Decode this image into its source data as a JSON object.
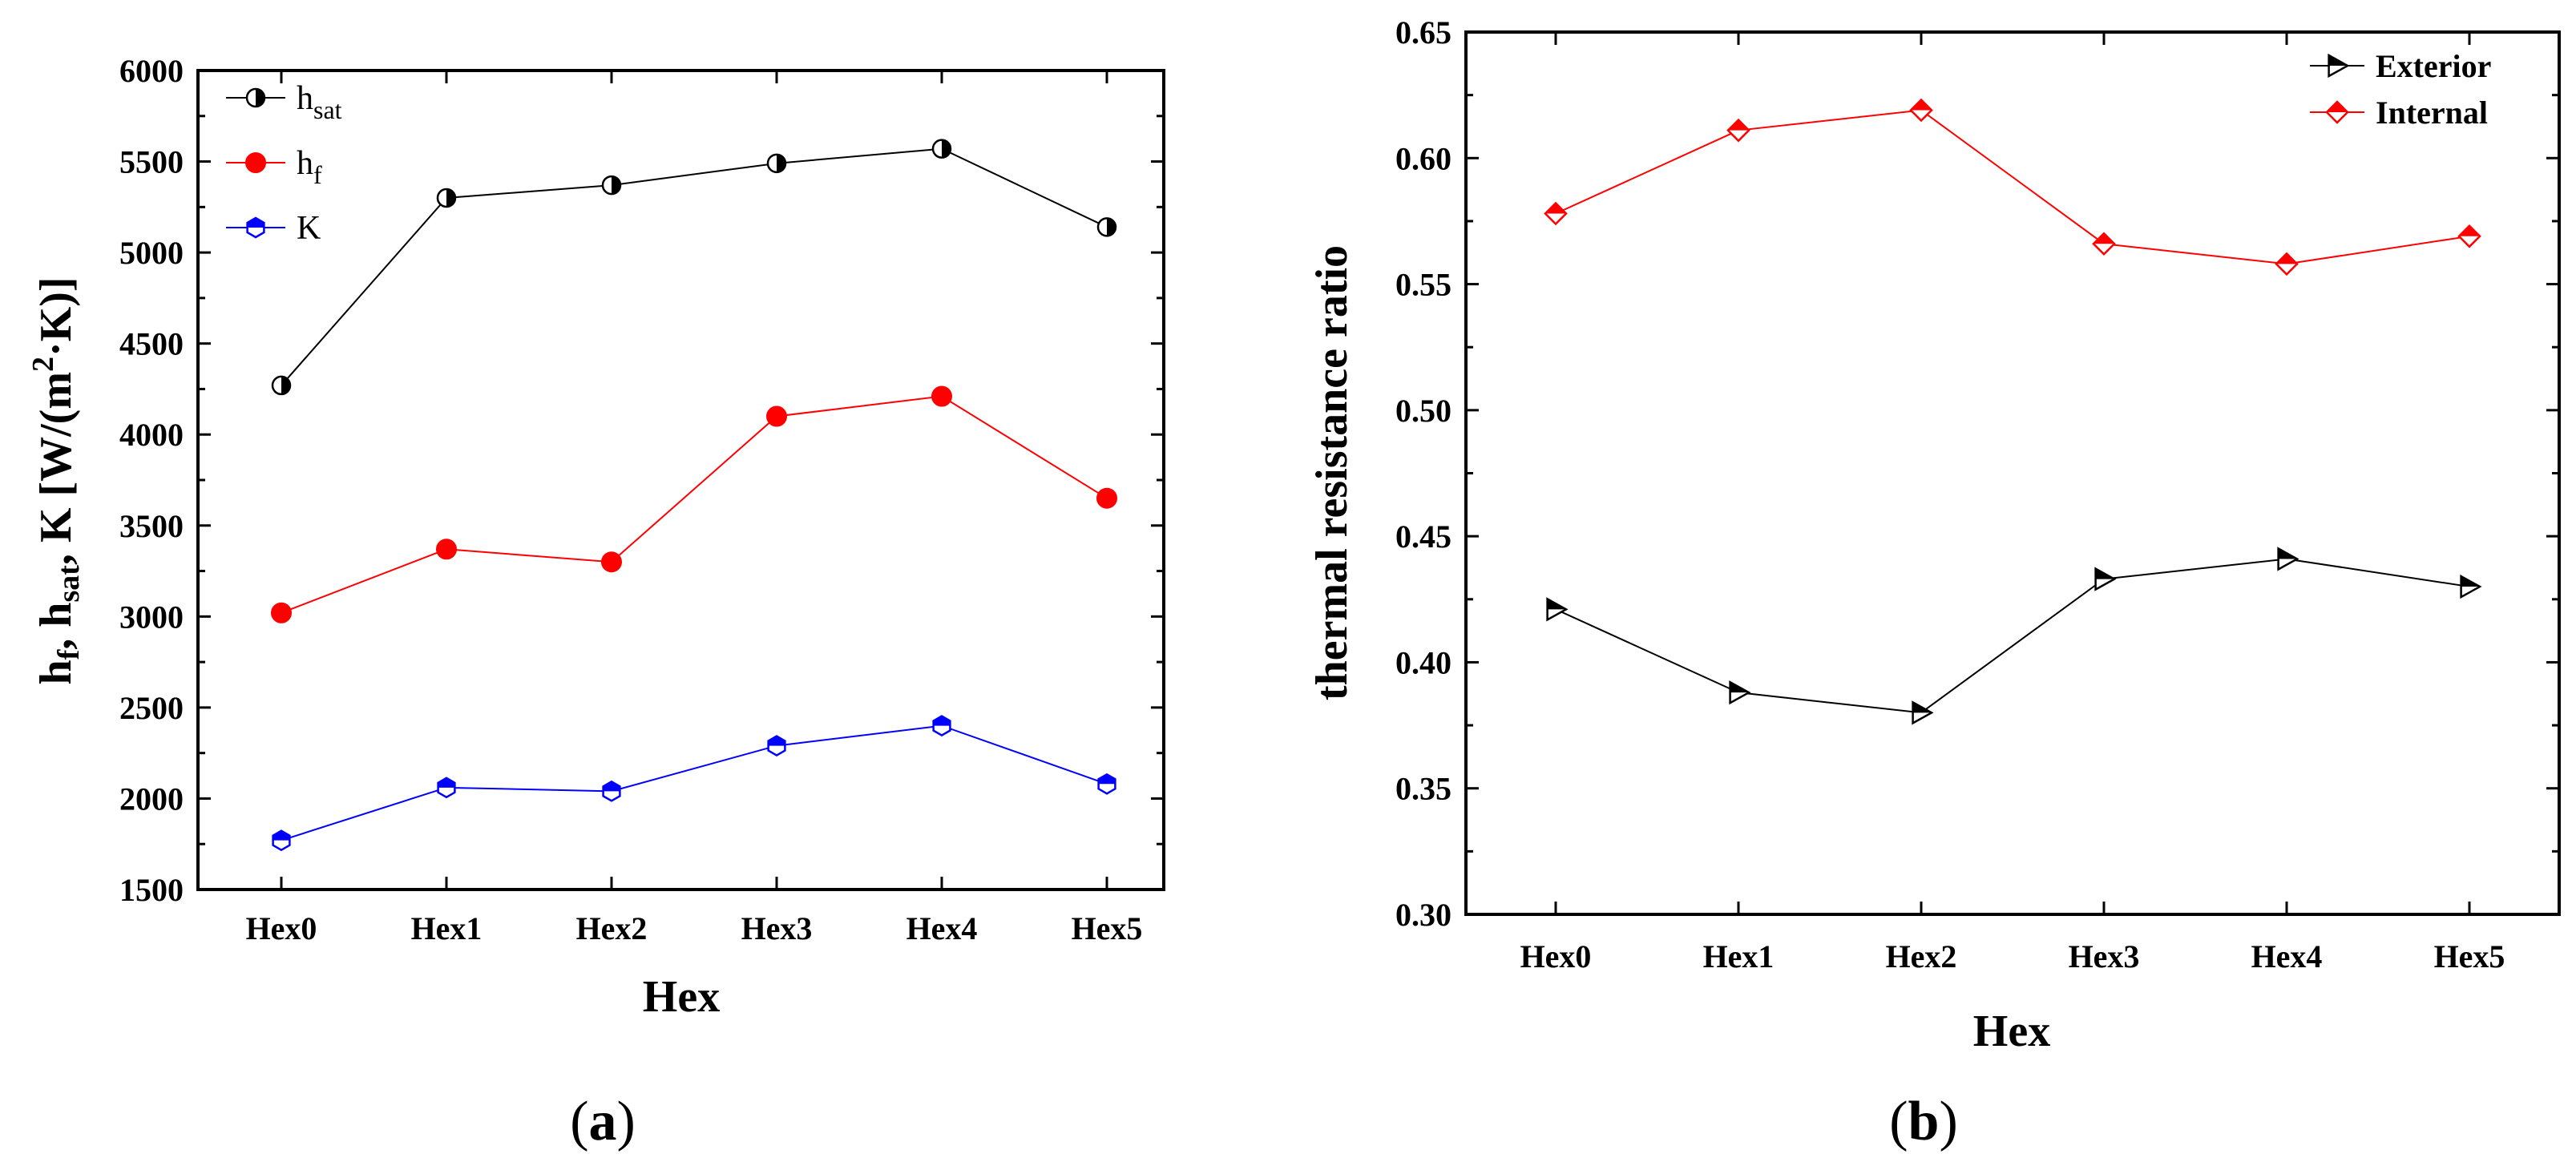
{
  "colors": {
    "black": "#000000",
    "red": "#ff0000",
    "blue": "#0000ff"
  },
  "chart_data": [
    {
      "id": "a",
      "type": "line",
      "caption": {
        "open": "(",
        "letter": "a",
        "close": ")"
      },
      "categories": [
        "Hex0",
        "Hex1",
        "Hex2",
        "Hex3",
        "Hex4",
        "Hex5"
      ],
      "xlabel": "Hex",
      "ylabel": {
        "p1": "h",
        "s1": "f",
        "p2": ", h",
        "s2": "sat",
        "p3": ", K  [W/(m",
        "sup": "2",
        "p4": "·K)]"
      },
      "ylim": [
        1500,
        6000
      ],
      "yticks": [
        "1500",
        "2000",
        "2500",
        "3000",
        "3500",
        "4000",
        "4500",
        "5000",
        "5500",
        "6000"
      ],
      "legend_position": "top-left",
      "series": [
        {
          "name": "h_sat",
          "legend": {
            "main": "h",
            "sub": "sat"
          },
          "color": "#000000",
          "marker": "half-circle",
          "values": [
            4270,
            5300,
            5370,
            5490,
            5570,
            5140
          ]
        },
        {
          "name": "h_f",
          "legend": {
            "main": "h",
            "sub": "f"
          },
          "color": "#ff0000",
          "marker": "filled-circle",
          "values": [
            3020,
            3370,
            3300,
            4100,
            4210,
            3650
          ]
        },
        {
          "name": "K",
          "legend": {
            "main": "K",
            "sub": ""
          },
          "color": "#0000ff",
          "marker": "half-hexagon",
          "values": [
            1770,
            2060,
            2040,
            2290,
            2400,
            2080
          ]
        }
      ]
    },
    {
      "id": "b",
      "type": "line",
      "caption": {
        "open": "(",
        "letter": "b",
        "close": ")"
      },
      "categories": [
        "Hex0",
        "Hex1",
        "Hex2",
        "Hex3",
        "Hex4",
        "Hex5"
      ],
      "xlabel": "Hex",
      "ylabel": "thermal resistance ratio",
      "ylim": [
        0.3,
        0.65
      ],
      "yticks": [
        "0.30",
        "0.35",
        "0.40",
        "0.45",
        "0.50",
        "0.55",
        "0.60",
        "0.65"
      ],
      "legend_position": "top-right",
      "series": [
        {
          "name": "Exterior",
          "legend": {
            "main": "Exterior",
            "sub": ""
          },
          "color": "#000000",
          "marker": "half-triangle",
          "values": [
            0.421,
            0.388,
            0.38,
            0.433,
            0.441,
            0.43
          ]
        },
        {
          "name": "Internal",
          "legend": {
            "main": "Internal",
            "sub": ""
          },
          "color": "#ff0000",
          "marker": "half-diamond",
          "values": [
            0.578,
            0.611,
            0.619,
            0.566,
            0.558,
            0.569
          ]
        }
      ]
    }
  ]
}
